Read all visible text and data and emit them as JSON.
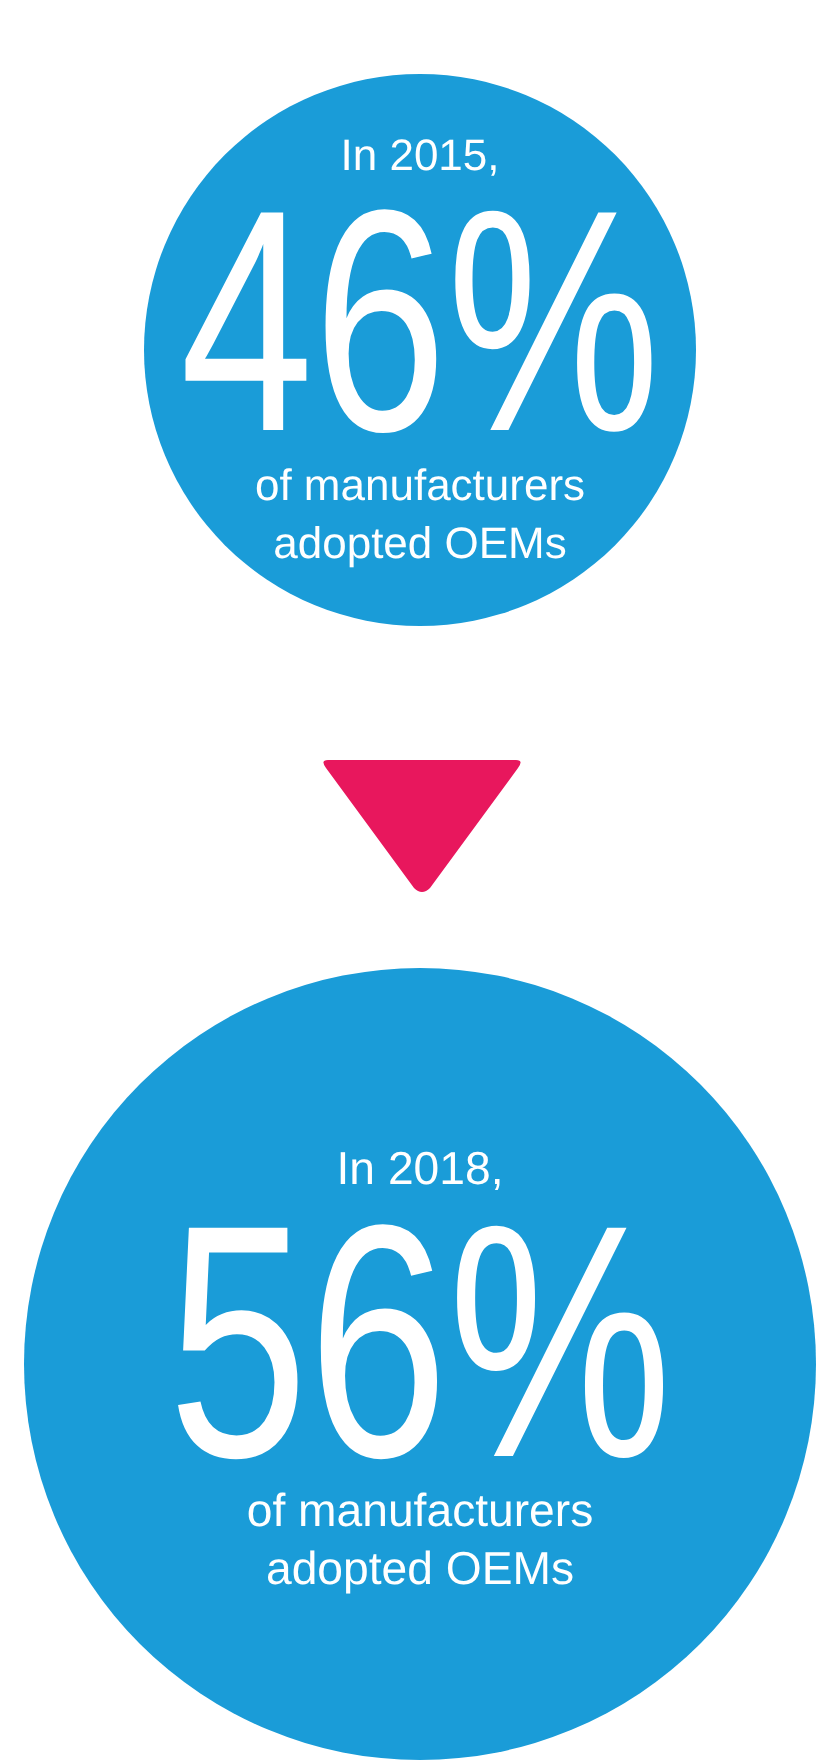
{
  "chart_data": {
    "type": "other",
    "values": [
      46,
      56
    ],
    "value_labels": [
      "46%",
      "56%"
    ],
    "colors": [
      "#1a9cd8",
      "#1a9cd8"
    ],
    "annotations": [
      "In 2015,",
      "of manufacturers\nadopted OEMs",
      "In 2018,",
      "of manufacturers\nadopted OEMs"
    ]
  }
}
